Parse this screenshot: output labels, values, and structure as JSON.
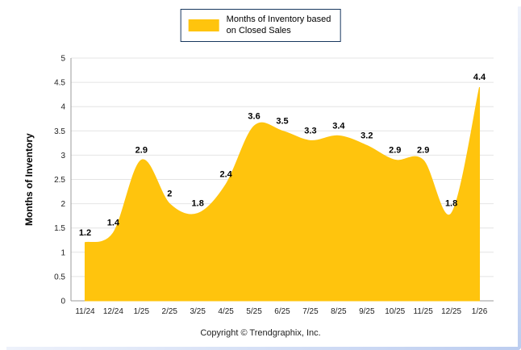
{
  "legend": {
    "label_line1": "Months of Inventory based",
    "label_line2": "on Closed Sales"
  },
  "footer": {
    "copyright": "Copyright © Trendgraphix, Inc."
  },
  "colors": {
    "series": "#FFC40D",
    "series_edge": "#FFC40D",
    "legend_border": "#17375e",
    "grid": "#e4e4e4",
    "axis": "#9b9b9b",
    "tick_text": "#222222",
    "label_text": "#000000"
  },
  "chart_data": {
    "type": "area",
    "title": "",
    "xlabel": "",
    "ylabel": "Months of Inventory",
    "categories": [
      "11/24",
      "12/24",
      "1/25",
      "2/25",
      "3/25",
      "4/25",
      "5/25",
      "6/25",
      "7/25",
      "8/25",
      "9/25",
      "10/25",
      "11/25",
      "12/25",
      "1/26"
    ],
    "series": [
      {
        "name": "Months of Inventory based on Closed Sales",
        "values": [
          1.2,
          1.4,
          2.9,
          2,
          1.8,
          2.4,
          3.6,
          3.5,
          3.3,
          3.4,
          3.2,
          2.9,
          2.9,
          1.8,
          4.4
        ]
      }
    ],
    "ylim": [
      0,
      5
    ],
    "ytick_step": 0.5,
    "grid": true,
    "smooth": true,
    "data_labels": true,
    "legend_position": "top"
  }
}
